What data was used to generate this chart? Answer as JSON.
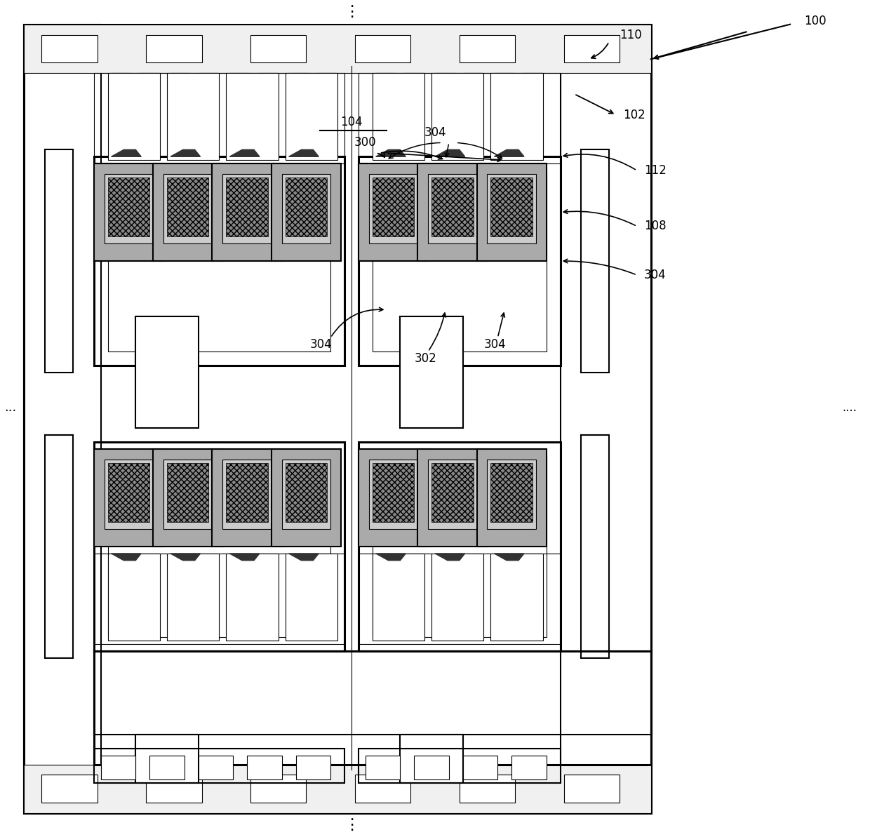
{
  "bg": "#ffffff",
  "lc": "#000000",
  "fig_w": 12.4,
  "fig_h": 11.93,
  "lw_thin": 0.8,
  "lw_med": 1.5,
  "lw_thick": 2.2
}
